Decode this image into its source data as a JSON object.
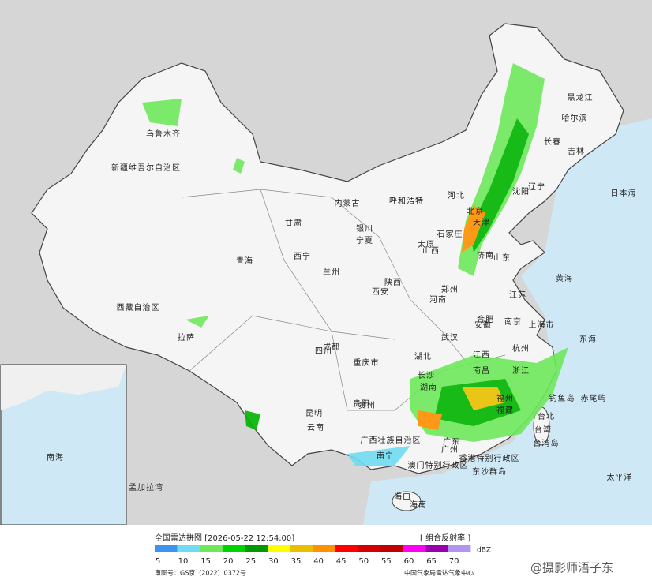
{
  "map": {
    "labels": [
      "新疆维吾尔自治区",
      "乌鲁木齐",
      "西藏自治区",
      "拉萨",
      "青海",
      "西宁",
      "甘肃",
      "兰州",
      "内蒙古",
      "呼和浩特",
      "宁夏",
      "银川",
      "陕西",
      "西安",
      "山西",
      "太原",
      "河北",
      "石家庄",
      "北京",
      "天津",
      "山东",
      "济南",
      "河南",
      "郑州",
      "江苏",
      "南京",
      "上海市",
      "安徽",
      "合肥",
      "湖北",
      "武汉",
      "四川",
      "成都",
      "重庆市",
      "贵州",
      "贵阳",
      "云南",
      "昆明",
      "湖南",
      "长沙",
      "江西",
      "南昌",
      "浙江",
      "杭州",
      "福建",
      "福州",
      "广东",
      "广州",
      "广西壮族自治区",
      "南宁",
      "海南",
      "海口",
      "香港特别行政区",
      "澳门特别行政区",
      "台湾",
      "台北",
      "黑龙江",
      "哈尔滨",
      "吉林",
      "长春",
      "辽宁",
      "沈阳",
      "黄海",
      "东海",
      "日本海",
      "太平洋",
      "南海",
      "孟加拉湾",
      "钓鱼岛",
      "赤尾屿",
      "东沙群岛",
      "台湾岛"
    ]
  },
  "footer": {
    "title": "全国雷达拼图 [2026-05-22 12:54:00]",
    "product": "[ 组合反射率 ]",
    "unit": "dBZ",
    "legend": [
      {
        "value": 5,
        "color": "#3d94f0"
      },
      {
        "value": 10,
        "color": "#6fdcf0"
      },
      {
        "value": 15,
        "color": "#6ee85a"
      },
      {
        "value": 20,
        "color": "#00d400"
      },
      {
        "value": 25,
        "color": "#009a00"
      },
      {
        "value": 30,
        "color": "#ffff00"
      },
      {
        "value": 35,
        "color": "#e8c000"
      },
      {
        "value": 40,
        "color": "#ff9000"
      },
      {
        "value": 45,
        "color": "#ff0000"
      },
      {
        "value": 50,
        "color": "#d40000"
      },
      {
        "value": 55,
        "color": "#c00000"
      },
      {
        "value": 60,
        "color": "#ff00f0"
      },
      {
        "value": 65,
        "color": "#9a00b0"
      },
      {
        "value": 70,
        "color": "#b094f0"
      }
    ],
    "review_number": "审图号：GS京（2022）0372号",
    "source": "中国气象局雷达气象中心",
    "watermark": "@摄影师浯子东"
  }
}
